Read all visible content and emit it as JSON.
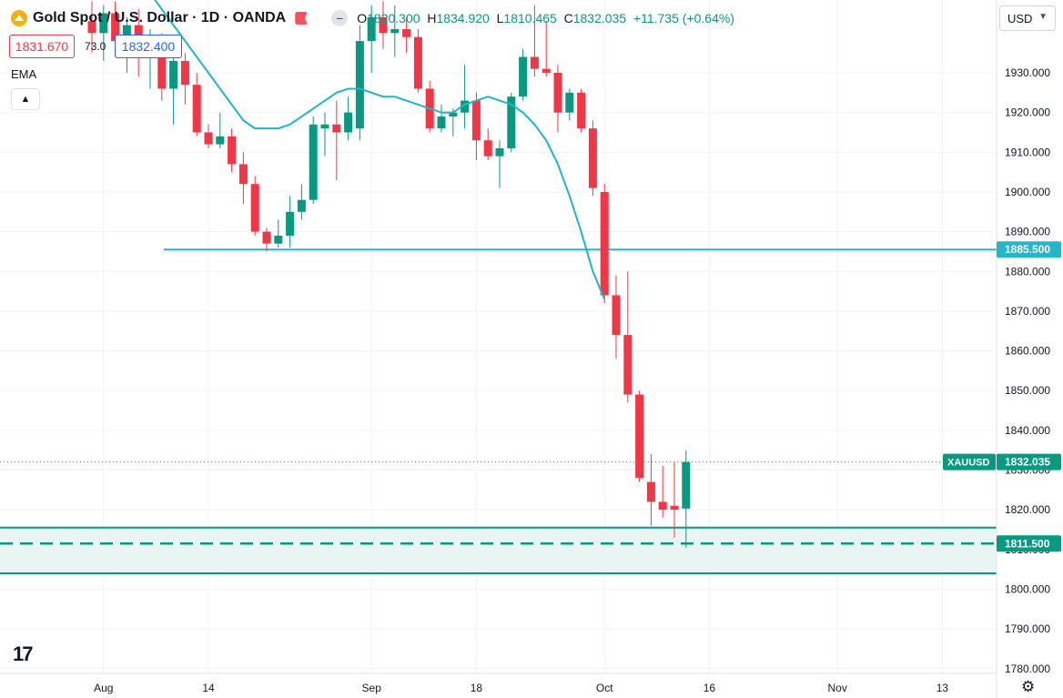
{
  "header": {
    "symbol": "Gold Spot / U.S. Dollar · 1D · OANDA",
    "open_label": "O",
    "open": "1820.300",
    "high_label": "H",
    "high": "1834.920",
    "low_label": "L",
    "low": "1810.465",
    "close_label": "C",
    "close": "1832.035",
    "change": "+11.735 (+0.64%)"
  },
  "trade": {
    "sell": "1831.670",
    "spread": "73.0",
    "buy": "1832.400"
  },
  "indicator": {
    "name": "EMA",
    "collapse_icon": "chevron-up-icon"
  },
  "currency": {
    "selected": "USD"
  },
  "colors": {
    "up": "#089981",
    "down": "#f23645",
    "ema": "#1fb5c9",
    "grid": "#f0f3fa",
    "zone": "#e8f5f2"
  },
  "chart_data": {
    "type": "candlestick",
    "y_axis": {
      "min": 1775,
      "max": 1945,
      "ticks": [
        1930,
        1920,
        1910,
        1900,
        1890,
        1880,
        1870,
        1860,
        1850,
        1840,
        1830,
        1820,
        1810,
        1800,
        1790,
        1780
      ],
      "tick_labels": [
        "1930.000",
        "1920.000",
        "1910.000",
        "1900.000",
        "1890.000",
        "1880.000",
        "1870.000",
        "1860.000",
        "1850.000",
        "1840.000",
        "1830.000",
        "1820.000",
        "1810.000",
        "1800.000",
        "1790.000",
        "1780.000"
      ]
    },
    "x_axis": {
      "labels": [
        {
          "text": "Aug",
          "day": 1
        },
        {
          "text": "14",
          "day": 10
        },
        {
          "text": "Sep",
          "day": 24
        },
        {
          "text": "18",
          "day": 33
        },
        {
          "text": "Oct",
          "day": 44
        },
        {
          "text": "16",
          "day": 53
        },
        {
          "text": "Nov",
          "day": 64
        },
        {
          "text": "13",
          "day": 73
        }
      ]
    },
    "candles": [
      {
        "day": 0,
        "o": 1943,
        "h": 1948,
        "l": 1935,
        "c": 1940
      },
      {
        "day": 1,
        "o": 1940,
        "h": 1947,
        "l": 1933,
        "c": 1945
      },
      {
        "day": 2,
        "o": 1945,
        "h": 1948,
        "l": 1934,
        "c": 1938
      },
      {
        "day": 3,
        "o": 1938,
        "h": 1944,
        "l": 1930,
        "c": 1942
      },
      {
        "day": 4,
        "o": 1942,
        "h": 1946,
        "l": 1929,
        "c": 1935
      },
      {
        "day": 5,
        "o": 1935,
        "h": 1941,
        "l": 1926,
        "c": 1937
      },
      {
        "day": 6,
        "o": 1937,
        "h": 1940,
        "l": 1923,
        "c": 1926
      },
      {
        "day": 7,
        "o": 1926,
        "h": 1934,
        "l": 1917,
        "c": 1933
      },
      {
        "day": 8,
        "o": 1933,
        "h": 1935,
        "l": 1922,
        "c": 1927
      },
      {
        "day": 9,
        "o": 1927,
        "h": 1930,
        "l": 1914,
        "c": 1915
      },
      {
        "day": 10,
        "o": 1915,
        "h": 1917,
        "l": 1911,
        "c": 1912
      },
      {
        "day": 11,
        "o": 1912,
        "h": 1920,
        "l": 1911,
        "c": 1914
      },
      {
        "day": 12,
        "o": 1914,
        "h": 1916,
        "l": 1905,
        "c": 1907
      },
      {
        "day": 13,
        "o": 1907,
        "h": 1910,
        "l": 1897,
        "c": 1902
      },
      {
        "day": 14,
        "o": 1902,
        "h": 1904,
        "l": 1889,
        "c": 1890
      },
      {
        "day": 15,
        "o": 1890,
        "h": 1891,
        "l": 1885,
        "c": 1887
      },
      {
        "day": 16,
        "o": 1887,
        "h": 1893,
        "l": 1886,
        "c": 1889
      },
      {
        "day": 17,
        "o": 1889,
        "h": 1899,
        "l": 1886,
        "c": 1895
      },
      {
        "day": 18,
        "o": 1895,
        "h": 1902,
        "l": 1893,
        "c": 1898
      },
      {
        "day": 19,
        "o": 1898,
        "h": 1919,
        "l": 1897,
        "c": 1917
      },
      {
        "day": 20,
        "o": 1916,
        "h": 1920,
        "l": 1909,
        "c": 1917
      },
      {
        "day": 21,
        "o": 1917,
        "h": 1923,
        "l": 1903,
        "c": 1915
      },
      {
        "day": 22,
        "o": 1915,
        "h": 1924,
        "l": 1913,
        "c": 1920
      },
      {
        "day": 23,
        "o": 1916,
        "h": 1942,
        "l": 1913,
        "c": 1938
      },
      {
        "day": 24,
        "o": 1938,
        "h": 1947,
        "l": 1930,
        "c": 1944
      },
      {
        "day": 25,
        "o": 1944,
        "h": 1948,
        "l": 1936,
        "c": 1940
      },
      {
        "day": 26,
        "o": 1940,
        "h": 1947,
        "l": 1934,
        "c": 1941
      },
      {
        "day": 27,
        "o": 1941,
        "h": 1944,
        "l": 1935,
        "c": 1939
      },
      {
        "day": 28,
        "o": 1939,
        "h": 1941,
        "l": 1925,
        "c": 1926
      },
      {
        "day": 29,
        "o": 1926,
        "h": 1928,
        "l": 1915,
        "c": 1916
      },
      {
        "day": 30,
        "o": 1916,
        "h": 1922,
        "l": 1915,
        "c": 1919
      },
      {
        "day": 31,
        "o": 1919,
        "h": 1921,
        "l": 1914,
        "c": 1920
      },
      {
        "day": 32,
        "o": 1920,
        "h": 1932,
        "l": 1916,
        "c": 1923
      },
      {
        "day": 33,
        "o": 1923,
        "h": 1925,
        "l": 1908,
        "c": 1913
      },
      {
        "day": 34,
        "o": 1913,
        "h": 1916,
        "l": 1908,
        "c": 1909
      },
      {
        "day": 35,
        "o": 1909,
        "h": 1913,
        "l": 1901,
        "c": 1911
      },
      {
        "day": 36,
        "o": 1911,
        "h": 1925,
        "l": 1910,
        "c": 1924
      },
      {
        "day": 37,
        "o": 1924,
        "h": 1936,
        "l": 1923,
        "c": 1934
      },
      {
        "day": 38,
        "o": 1934,
        "h": 1947,
        "l": 1929,
        "c": 1931
      },
      {
        "day": 39,
        "o": 1931,
        "h": 1943,
        "l": 1929,
        "c": 1930
      },
      {
        "day": 40,
        "o": 1930,
        "h": 1932,
        "l": 1915,
        "c": 1920
      },
      {
        "day": 41,
        "o": 1920,
        "h": 1926,
        "l": 1918,
        "c": 1925
      },
      {
        "day": 42,
        "o": 1925,
        "h": 1926,
        "l": 1915,
        "c": 1916
      },
      {
        "day": 43,
        "o": 1916,
        "h": 1918,
        "l": 1899,
        "c": 1901
      },
      {
        "day": 44,
        "o": 1900,
        "h": 1902,
        "l": 1872,
        "c": 1874
      },
      {
        "day": 45,
        "o": 1874,
        "h": 1879,
        "l": 1858,
        "c": 1864
      },
      {
        "day": 46,
        "o": 1864,
        "h": 1880,
        "l": 1847,
        "c": 1849
      },
      {
        "day": 47,
        "o": 1849,
        "h": 1850,
        "l": 1827,
        "c": 1828
      },
      {
        "day": 48,
        "o": 1827,
        "h": 1834,
        "l": 1816,
        "c": 1822
      },
      {
        "day": 49,
        "o": 1822,
        "h": 1831,
        "l": 1818,
        "c": 1820
      },
      {
        "day": 50,
        "o": 1821,
        "h": 1832,
        "l": 1813,
        "c": 1820
      },
      {
        "day": 51,
        "o": 1820.3,
        "h": 1834.92,
        "l": 1810.465,
        "c": 1832.035
      }
    ],
    "ema": [
      {
        "day": 5,
        "v": 1950
      },
      {
        "day": 6,
        "v": 1946
      },
      {
        "day": 7,
        "v": 1942
      },
      {
        "day": 8,
        "v": 1938
      },
      {
        "day": 9,
        "v": 1934
      },
      {
        "day": 10,
        "v": 1930
      },
      {
        "day": 11,
        "v": 1926
      },
      {
        "day": 12,
        "v": 1922
      },
      {
        "day": 13,
        "v": 1918
      },
      {
        "day": 14,
        "v": 1916
      },
      {
        "day": 15,
        "v": 1916
      },
      {
        "day": 16,
        "v": 1916
      },
      {
        "day": 17,
        "v": 1917
      },
      {
        "day": 18,
        "v": 1919
      },
      {
        "day": 19,
        "v": 1921
      },
      {
        "day": 20,
        "v": 1923
      },
      {
        "day": 21,
        "v": 1925
      },
      {
        "day": 22,
        "v": 1926
      },
      {
        "day": 23,
        "v": 1926
      },
      {
        "day": 24,
        "v": 1925
      },
      {
        "day": 25,
        "v": 1924
      },
      {
        "day": 26,
        "v": 1924
      },
      {
        "day": 27,
        "v": 1923
      },
      {
        "day": 28,
        "v": 1922
      },
      {
        "day": 29,
        "v": 1921
      },
      {
        "day": 30,
        "v": 1920
      },
      {
        "day": 31,
        "v": 1920
      },
      {
        "day": 32,
        "v": 1922
      },
      {
        "day": 33,
        "v": 1923
      },
      {
        "day": 34,
        "v": 1924
      },
      {
        "day": 35,
        "v": 1923
      },
      {
        "day": 36,
        "v": 1922
      },
      {
        "day": 37,
        "v": 1920
      },
      {
        "day": 38,
        "v": 1917
      },
      {
        "day": 39,
        "v": 1913
      },
      {
        "day": 40,
        "v": 1907
      },
      {
        "day": 41,
        "v": 1899
      },
      {
        "day": 42,
        "v": 1890
      },
      {
        "day": 43,
        "v": 1880
      },
      {
        "day": 44,
        "v": 1873
      }
    ],
    "horizontal_lines": [
      {
        "price": 1885.5,
        "label": "1885.500",
        "style": "solid",
        "color": "#26b5c9"
      }
    ],
    "zone": {
      "top": 1815.5,
      "bottom": 1804.0,
      "mid": 1811.5,
      "mid_label": "1811.500",
      "color": "#089981"
    },
    "last_price": {
      "price": 1832.035,
      "symbol_label": "XAUUSD",
      "label": "1832.035"
    }
  }
}
